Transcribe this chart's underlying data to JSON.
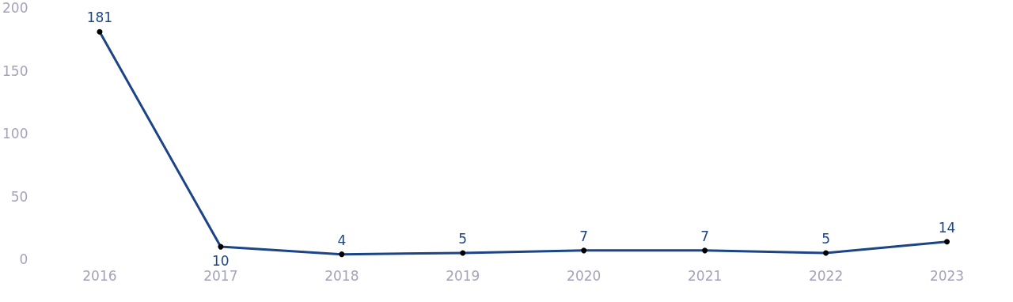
{
  "chart_data": {
    "type": "line",
    "categories": [
      "2016",
      "2017",
      "2018",
      "2019",
      "2020",
      "2021",
      "2022",
      "2023"
    ],
    "series": [
      {
        "color": "#1c4587",
        "values": [
          181,
          10,
          4,
          5,
          7,
          7,
          5,
          14
        ]
      }
    ],
    "ylim": [
      0,
      200
    ],
    "yticks": [
      0,
      50,
      100,
      150,
      200
    ],
    "grid": false,
    "marker": "circle",
    "line_style": "solid",
    "data_labels": true
  }
}
